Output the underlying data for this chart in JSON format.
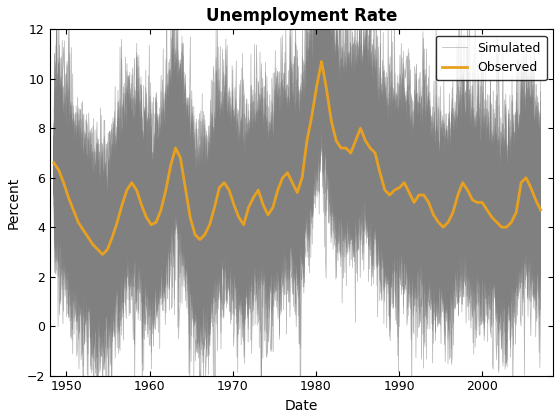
{
  "title": "Unemployment Rate",
  "xlabel": "Date",
  "ylabel": "Percent",
  "xlim_start": 1948.0,
  "xlim_end": 2008.5,
  "ylim": [
    -2,
    12
  ],
  "yticks": [
    -2,
    0,
    2,
    4,
    6,
    8,
    10,
    12
  ],
  "xticks": [
    1950,
    1960,
    1970,
    1980,
    1990,
    2000
  ],
  "observed_color": "#E8A020",
  "simulated_color": "#808080",
  "observed_linewidth": 2.0,
  "simulated_linewidth": 0.5,
  "n_simulated": 100,
  "random_seed": 42,
  "observed_data": [
    6.6,
    6.3,
    5.8,
    5.2,
    4.7,
    4.2,
    3.9,
    3.6,
    3.3,
    3.1,
    2.9,
    3.1,
    3.6,
    4.2,
    4.9,
    5.5,
    5.8,
    5.5,
    4.9,
    4.4,
    4.1,
    4.2,
    4.7,
    5.5,
    6.5,
    7.2,
    6.8,
    5.6,
    4.4,
    3.7,
    3.5,
    3.7,
    4.1,
    4.8,
    5.6,
    5.8,
    5.5,
    4.9,
    4.4,
    4.1,
    4.8,
    5.2,
    5.5,
    4.9,
    4.5,
    4.8,
    5.5,
    6.0,
    6.2,
    5.8,
    5.4,
    6.0,
    7.5,
    8.5,
    9.7,
    10.7,
    9.6,
    8.3,
    7.5,
    7.2,
    7.2,
    7.0,
    7.5,
    8.0,
    7.5,
    7.2,
    7.0,
    6.2,
    5.5,
    5.3,
    5.5,
    5.6,
    5.8,
    5.4,
    5.0,
    5.3,
    5.3,
    5.0,
    4.5,
    4.2,
    4.0,
    4.2,
    4.6,
    5.3,
    5.8,
    5.5,
    5.1,
    5.0,
    5.0,
    4.7,
    4.4,
    4.2,
    4.0,
    4.0,
    4.2,
    4.6,
    5.8,
    6.0,
    5.6,
    5.1,
    4.7
  ],
  "background_color": "#ffffff",
  "legend_fontsize": 9,
  "title_fontsize": 12,
  "axis_label_fontsize": 10,
  "n_high_freq": 700
}
